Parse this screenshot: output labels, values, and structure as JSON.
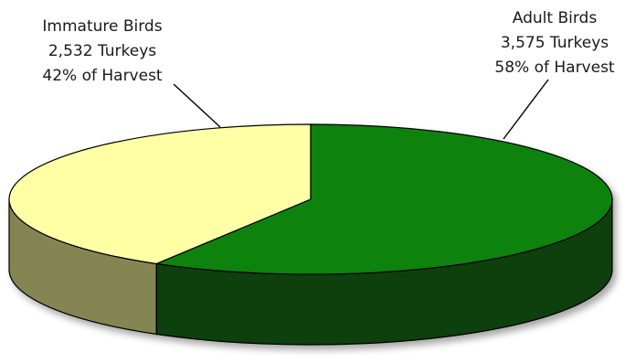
{
  "chart_data": {
    "type": "pie",
    "style": "3d",
    "categories": [
      "Immature Birds",
      "Adult Birds"
    ],
    "values": [
      2532,
      3575
    ],
    "value_labels": [
      "2,532 Turkeys",
      "3,575 Turkeys"
    ],
    "percent_labels": [
      "42% of Harvest",
      "58% of Harvest"
    ],
    "percents": [
      42,
      58
    ],
    "colors": {
      "Immature Birds": {
        "top": "#ffffa6",
        "side": "#858552"
      },
      "Adult Birds": {
        "top": "#108210",
        "side": "#084108"
      }
    }
  }
}
